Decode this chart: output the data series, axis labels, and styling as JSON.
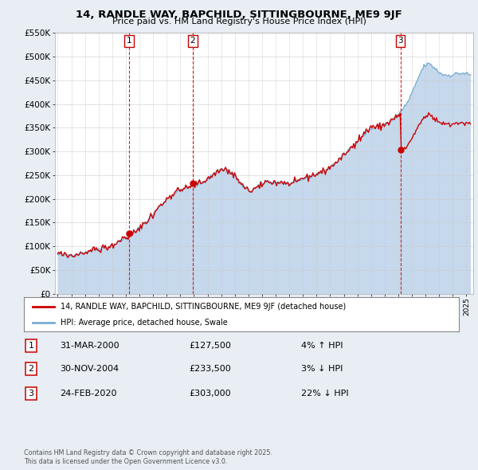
{
  "title": "14, RANDLE WAY, BAPCHILD, SITTINGBOURNE, ME9 9JF",
  "subtitle": "Price paid vs. HM Land Registry's House Price Index (HPI)",
  "legend_label_red": "14, RANDLE WAY, BAPCHILD, SITTINGBOURNE, ME9 9JF (detached house)",
  "legend_label_blue": "HPI: Average price, detached house, Swale",
  "transactions": [
    {
      "num": 1,
      "date": "31-MAR-2000",
      "year": 2000.25,
      "price": 127500,
      "pct": "4%",
      "dir": "↑"
    },
    {
      "num": 2,
      "date": "30-NOV-2004",
      "year": 2004.92,
      "price": 233500,
      "pct": "3%",
      "dir": "↓"
    },
    {
      "num": 3,
      "date": "24-FEB-2020",
      "year": 2020.15,
      "price": 303000,
      "pct": "22%",
      "dir": "↓"
    }
  ],
  "footnote1": "Contains HM Land Registry data © Crown copyright and database right 2025.",
  "footnote2": "This data is licensed under the Open Government Licence v3.0.",
  "ylim": [
    0,
    550000
  ],
  "yticks": [
    0,
    50000,
    100000,
    150000,
    200000,
    250000,
    300000,
    350000,
    400000,
    450000,
    500000,
    550000
  ],
  "xlim_start": 1994.8,
  "xlim_end": 2025.5,
  "background_color": "#e8eef4",
  "plot_bg_color": "#ffffff",
  "red_color": "#cc0000",
  "blue_fill_color": "#c5d8ec",
  "blue_line_color": "#7aadd4",
  "grid_color": "#cccccc",
  "vline_color": "#cc0000",
  "hpi_anchors_years": [
    1995,
    1996,
    1997,
    1998,
    1999,
    2000,
    2001,
    2002,
    2003,
    2004,
    2005,
    2006,
    2007,
    2008,
    2009,
    2010,
    2011,
    2012,
    2013,
    2014,
    2015,
    2016,
    2017,
    2018,
    2019,
    2020,
    2021,
    2022,
    2023,
    2024,
    2025.4
  ],
  "hpi_anchors_vals": [
    83000,
    82000,
    88000,
    95000,
    102000,
    118000,
    138000,
    168000,
    198000,
    218000,
    228000,
    242000,
    262000,
    248000,
    218000,
    232000,
    236000,
    232000,
    242000,
    252000,
    267000,
    292000,
    322000,
    347000,
    357000,
    378000,
    422000,
    482000,
    467000,
    462000,
    457000
  ],
  "noise_seed_blue": 42,
  "noise_seed_red": 99,
  "noise_blue_std": 2500,
  "noise_red_std": 4500,
  "red_post2020_scale": 0.775
}
